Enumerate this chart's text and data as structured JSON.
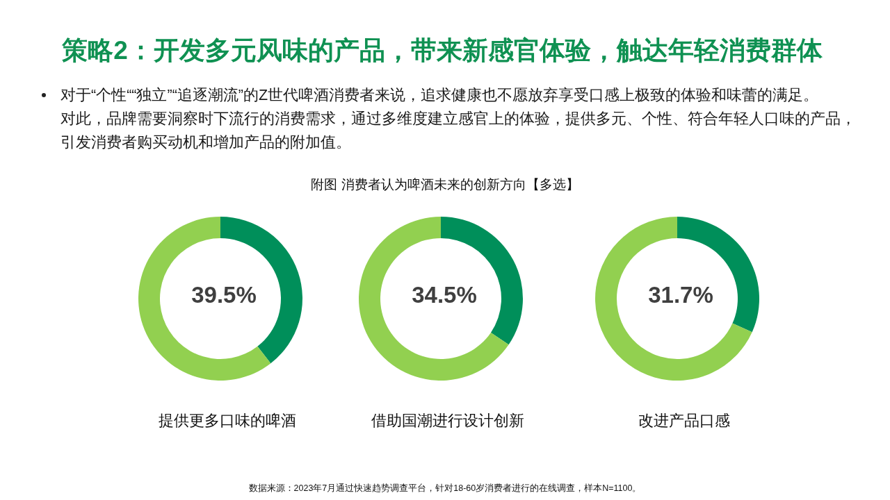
{
  "chart_data": [
    {
      "type": "other",
      "title": "策略2：开发多元风味的产品，带来新感官体验，触达年轻消费群体",
      "subtitle": "对于“个性““独立”“追逐潮流”的Z世代啤酒消费者来说，追求健康也不愿放弃享受口感上极致的体验和味蕾的满足。对此，品牌需要洞察时下流行的消费需求，通过多维度建立感官上的体验，提供多元、个性、符合年轻人口味的产品，引发消费者购买动机和增加产品的附加值。",
      "annotations": [
        "附图 消费者认为啤酒未来的创新方向【多选】",
        "数据来源：2023年7月通过快速趋势调查平台，针对18-60岁消费者进行的在线调查，样本N=1100。"
      ]
    },
    {
      "type": "donut",
      "title": "提供更多口味的啤酒",
      "categories": [
        null,
        null
      ],
      "values": [
        39.5,
        60.5
      ],
      "colors": [
        "#008f5a",
        "#92d050"
      ],
      "value_labels": [
        "39.5%",
        null
      ]
    },
    {
      "type": "donut",
      "title": "借助国潮进行设计创新",
      "categories": [
        null,
        null
      ],
      "values": [
        34.5,
        65.5
      ],
      "colors": [
        "#008f5a",
        "#92d050"
      ],
      "value_labels": [
        "34.5%",
        null
      ]
    },
    {
      "type": "donut",
      "title": "改进产品口感",
      "categories": [
        null,
        null
      ],
      "values": [
        31.7,
        68.3
      ],
      "colors": [
        "#008f5a",
        "#92d050"
      ],
      "value_labels": [
        "31.7%",
        null
      ]
    }
  ]
}
